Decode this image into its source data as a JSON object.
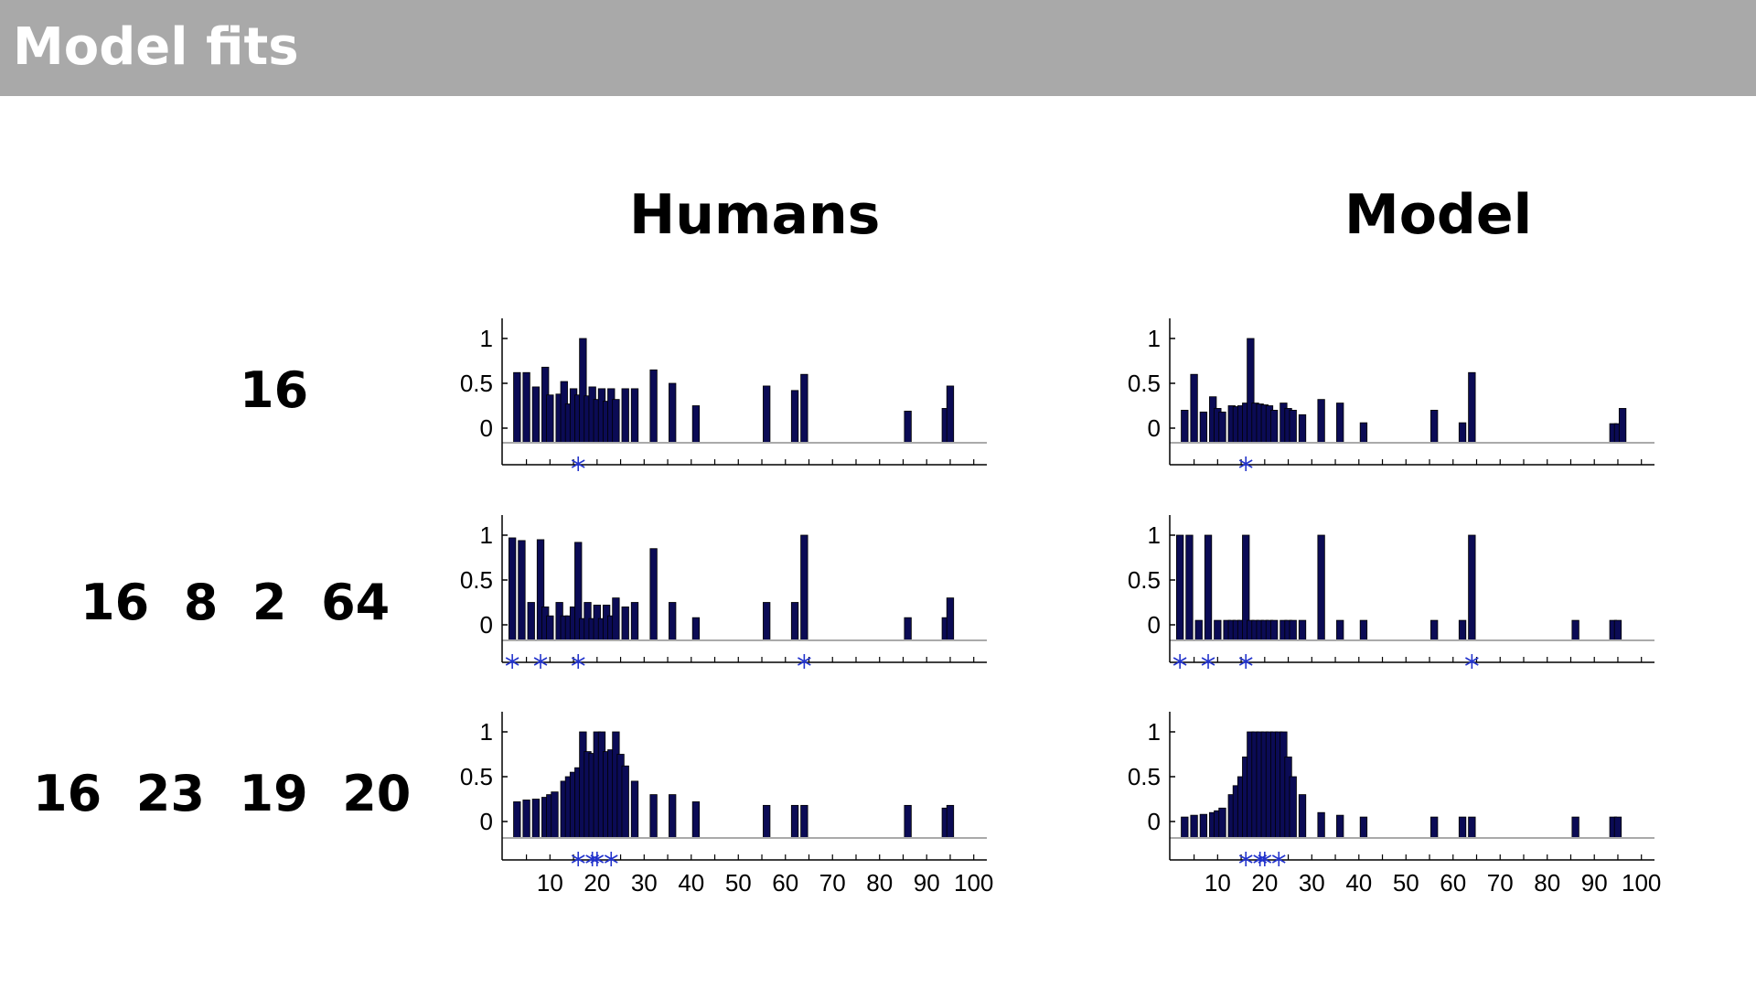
{
  "slide": {
    "title": "Model fits",
    "columns": [
      "Humans",
      "Model"
    ],
    "rows": [
      "16",
      "16  8  2  64",
      "16  23  19  20"
    ]
  },
  "colors": {
    "header_bg": "#a9a9a9",
    "bar": "#0b0b55",
    "star": "#2233cc"
  },
  "chart_data": [
    {
      "type": "bar",
      "panel": "Humans",
      "row": "16",
      "x": [
        3,
        5,
        7,
        9,
        10,
        12,
        13,
        14,
        15,
        16,
        17,
        18,
        19,
        20,
        21,
        22,
        23,
        24,
        26,
        28,
        32,
        36,
        41,
        56,
        62,
        64,
        86,
        94,
        95
      ],
      "values": [
        0.62,
        0.62,
        0.46,
        0.68,
        0.37,
        0.38,
        0.52,
        0.27,
        0.44,
        0.37,
        1.0,
        0.36,
        0.46,
        0.32,
        0.44,
        0.3,
        0.44,
        0.32,
        0.44,
        0.44,
        0.65,
        0.5,
        0.25,
        0.47,
        0.42,
        0.6,
        0.19,
        0.22,
        0.47
      ],
      "stars": [
        16
      ],
      "xlim": [
        1,
        100
      ],
      "ylim": [
        -0.15,
        1.15
      ],
      "yticks": [
        0,
        0.5,
        1
      ],
      "ytick_labels": [
        "0",
        "0.5",
        "1"
      ],
      "xticks": [
        10,
        20,
        30,
        40,
        50,
        60,
        70,
        80,
        90,
        100
      ],
      "xtick_labels": []
    },
    {
      "type": "bar",
      "panel": "Model",
      "row": "16",
      "x": [
        3,
        5,
        7,
        9,
        10,
        11,
        13,
        14,
        15,
        16,
        17,
        18,
        19,
        20,
        21,
        22,
        24,
        25,
        26,
        28,
        32,
        36,
        41,
        56,
        62,
        64,
        94,
        95,
        96
      ],
      "values": [
        0.2,
        0.6,
        0.18,
        0.35,
        0.22,
        0.18,
        0.25,
        0.24,
        0.25,
        0.28,
        1.0,
        0.28,
        0.27,
        0.26,
        0.25,
        0.2,
        0.28,
        0.22,
        0.2,
        0.15,
        0.32,
        0.28,
        0.06,
        0.2,
        0.06,
        0.62,
        0.05,
        0.05,
        0.22
      ],
      "stars": [
        16
      ],
      "xlim": [
        1,
        100
      ],
      "ylim": [
        -0.15,
        1.15
      ],
      "yticks": [
        0,
        0.5,
        1
      ],
      "ytick_labels": [
        "0",
        "0.5",
        "1"
      ],
      "xticks": [
        10,
        20,
        30,
        40,
        50,
        60,
        70,
        80,
        90,
        100
      ],
      "xtick_labels": []
    },
    {
      "type": "bar",
      "panel": "Humans",
      "row": "16  8  2  64",
      "x": [
        2,
        4,
        6,
        8,
        9,
        10,
        12,
        13,
        14,
        15,
        16,
        17,
        18,
        19,
        20,
        21,
        22,
        23,
        24,
        26,
        28,
        32,
        36,
        41,
        56,
        62,
        64,
        86,
        94,
        95
      ],
      "values": [
        0.97,
        0.94,
        0.25,
        0.95,
        0.2,
        0.1,
        0.25,
        0.1,
        0.1,
        0.2,
        0.92,
        0.07,
        0.25,
        0.07,
        0.22,
        0.07,
        0.22,
        0.1,
        0.3,
        0.2,
        0.25,
        0.85,
        0.25,
        0.08,
        0.25,
        0.25,
        1.0,
        0.08,
        0.08,
        0.3
      ],
      "stars": [
        2,
        8,
        16,
        64
      ],
      "xlim": [
        1,
        100
      ],
      "ylim": [
        -0.15,
        1.15
      ],
      "yticks": [
        0,
        0.5,
        1
      ],
      "ytick_labels": [
        "0",
        "0.5",
        "1"
      ],
      "xticks": [
        10,
        20,
        30,
        40,
        50,
        60,
        70,
        80,
        90,
        100
      ],
      "xtick_labels": []
    },
    {
      "type": "bar",
      "panel": "Model",
      "row": "16  8  2  64",
      "x": [
        2,
        4,
        6,
        8,
        10,
        12,
        13,
        14,
        15,
        16,
        17,
        18,
        19,
        20,
        21,
        22,
        24,
        25,
        26,
        28,
        32,
        36,
        41,
        56,
        62,
        64,
        86,
        94,
        95
      ],
      "values": [
        1.0,
        1.0,
        0.05,
        1.0,
        0.05,
        0.05,
        0.05,
        0.05,
        0.05,
        1.0,
        0.05,
        0.05,
        0.05,
        0.05,
        0.05,
        0.05,
        0.05,
        0.05,
        0.05,
        0.05,
        1.0,
        0.05,
        0.05,
        0.05,
        0.05,
        1.0,
        0.05,
        0.05,
        0.05
      ],
      "stars": [
        2,
        8,
        16,
        64
      ],
      "xlim": [
        1,
        100
      ],
      "ylim": [
        -0.15,
        1.15
      ],
      "yticks": [
        0,
        0.5,
        1
      ],
      "ytick_labels": [
        "0",
        "0.5",
        "1"
      ],
      "xticks": [
        10,
        20,
        30,
        40,
        50,
        60,
        70,
        80,
        90,
        100
      ],
      "xtick_labels": []
    },
    {
      "type": "bar",
      "panel": "Humans",
      "row": "16  23  19  20",
      "x": [
        3,
        5,
        7,
        9,
        10,
        11,
        13,
        14,
        15,
        16,
        17,
        18,
        19,
        20,
        21,
        22,
        23,
        24,
        25,
        26,
        28,
        32,
        36,
        41,
        56,
        62,
        64,
        86,
        94,
        95
      ],
      "values": [
        0.22,
        0.24,
        0.25,
        0.27,
        0.3,
        0.33,
        0.45,
        0.5,
        0.55,
        0.6,
        1.0,
        0.78,
        0.76,
        1.0,
        1.0,
        0.78,
        0.8,
        1.0,
        0.75,
        0.62,
        0.45,
        0.3,
        0.3,
        0.22,
        0.18,
        0.18,
        0.18,
        0.18,
        0.15,
        0.18
      ],
      "stars": [
        16,
        19,
        20,
        23
      ],
      "xlim": [
        1,
        100
      ],
      "ylim": [
        -0.15,
        1.15
      ],
      "yticks": [
        0,
        0.5,
        1
      ],
      "ytick_labels": [
        "0",
        "0.5",
        "1"
      ],
      "xticks": [
        10,
        20,
        30,
        40,
        50,
        60,
        70,
        80,
        90,
        100
      ],
      "xtick_labels": [
        "10",
        "20",
        "30",
        "40",
        "50",
        "60",
        "70",
        "80",
        "90",
        "100"
      ]
    },
    {
      "type": "bar",
      "panel": "Model",
      "row": "16  23  19  20",
      "x": [
        3,
        5,
        7,
        9,
        10,
        11,
        13,
        14,
        15,
        16,
        17,
        18,
        19,
        20,
        21,
        22,
        23,
        24,
        25,
        26,
        28,
        32,
        36,
        41,
        56,
        62,
        64,
        86,
        94,
        95
      ],
      "values": [
        0.05,
        0.07,
        0.08,
        0.1,
        0.12,
        0.15,
        0.3,
        0.4,
        0.5,
        0.72,
        1.0,
        1.0,
        1.0,
        1.0,
        1.0,
        1.0,
        1.0,
        1.0,
        0.72,
        0.5,
        0.3,
        0.1,
        0.07,
        0.05,
        0.05,
        0.05,
        0.05,
        0.05,
        0.05,
        0.05
      ],
      "stars": [
        16,
        19,
        20,
        23
      ],
      "xlim": [
        1,
        100
      ],
      "ylim": [
        -0.15,
        1.15
      ],
      "yticks": [
        0,
        0.5,
        1
      ],
      "ytick_labels": [
        "0",
        "0.5",
        "1"
      ],
      "xticks": [
        10,
        20,
        30,
        40,
        50,
        60,
        70,
        80,
        90,
        100
      ],
      "xtick_labels": [
        "10",
        "20",
        "30",
        "40",
        "50",
        "60",
        "70",
        "80",
        "90",
        "100"
      ]
    }
  ]
}
